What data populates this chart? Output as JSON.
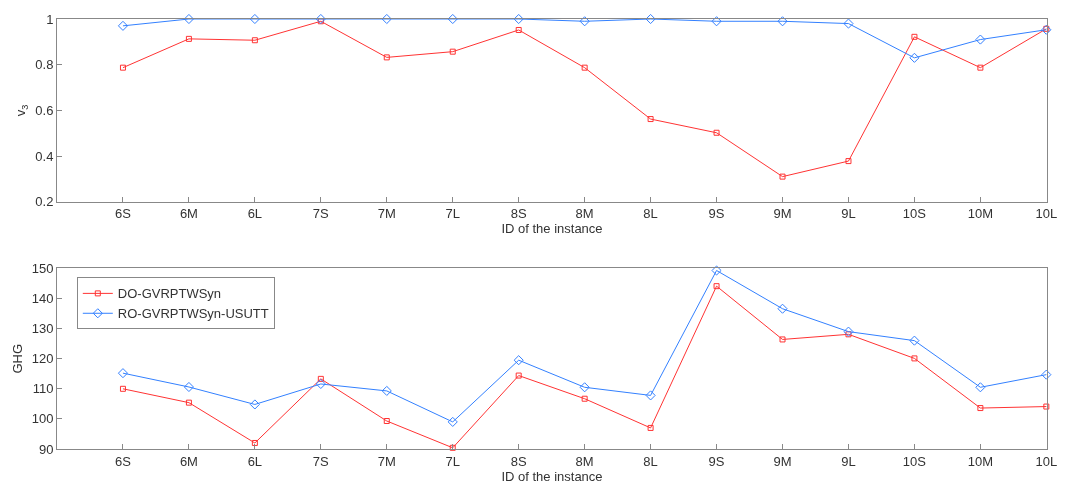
{
  "chart_data": [
    {
      "type": "line",
      "xlabel": "ID of the instance",
      "ylabel": "v$_{3}$",
      "categories": [
        "6S",
        "6M",
        "6L",
        "7S",
        "7M",
        "7L",
        "8S",
        "8M",
        "8L",
        "9S",
        "9M",
        "9L",
        "10S",
        "10M",
        "10L"
      ],
      "ylim": [
        0.2,
        1
      ],
      "yticks": [
        0.2,
        0.4,
        0.6,
        0.8,
        1
      ],
      "legend": false,
      "line_style": "solid",
      "series": [
        {
          "color": "#ff3333",
          "marker": "square",
          "values": [
            0.787,
            0.913,
            0.907,
            0.99,
            0.832,
            0.857,
            0.952,
            0.787,
            0.562,
            0.502,
            0.31,
            0.378,
            0.922,
            0.787,
            0.957
          ]
        },
        {
          "color": "#3380ff",
          "marker": "diamond",
          "values": [
            0.97,
            1,
            1,
            1,
            1,
            1,
            1,
            0.99,
            1,
            0.99,
            0.99,
            0.98,
            0.83,
            0.91,
            0.953
          ]
        }
      ]
    },
    {
      "type": "line",
      "xlabel": "ID of the instance",
      "ylabel": "GHG",
      "categories": [
        "6S",
        "6M",
        "6L",
        "7S",
        "7M",
        "7L",
        "8S",
        "8M",
        "8L",
        "9S",
        "9M",
        "9L",
        "10S",
        "10M",
        "10L"
      ],
      "ylim": [
        90,
        150
      ],
      "yticks": [
        90,
        100,
        110,
        120,
        130,
        140,
        150
      ],
      "legend": "top left",
      "line_style": "solid",
      "series": [
        {
          "name": "DO-GVRPTWSyn",
          "color": "#ff3333",
          "marker": "square",
          "values": [
            110.0,
            105.4,
            92.0,
            113.3,
            99.3,
            90.4,
            114.4,
            106.7,
            97.0,
            144.1,
            126.4,
            128.1,
            120.1,
            103.6,
            104.1
          ]
        },
        {
          "name": "RO-GVRPTWSyn-USUTT",
          "color": "#3380ff",
          "marker": "diamond",
          "values": [
            115.2,
            110.6,
            104.8,
            111.6,
            109.3,
            99.0,
            119.5,
            110.5,
            107.8,
            149.3,
            136.6,
            129.0,
            126.0,
            110.5,
            114.7
          ]
        }
      ]
    }
  ]
}
